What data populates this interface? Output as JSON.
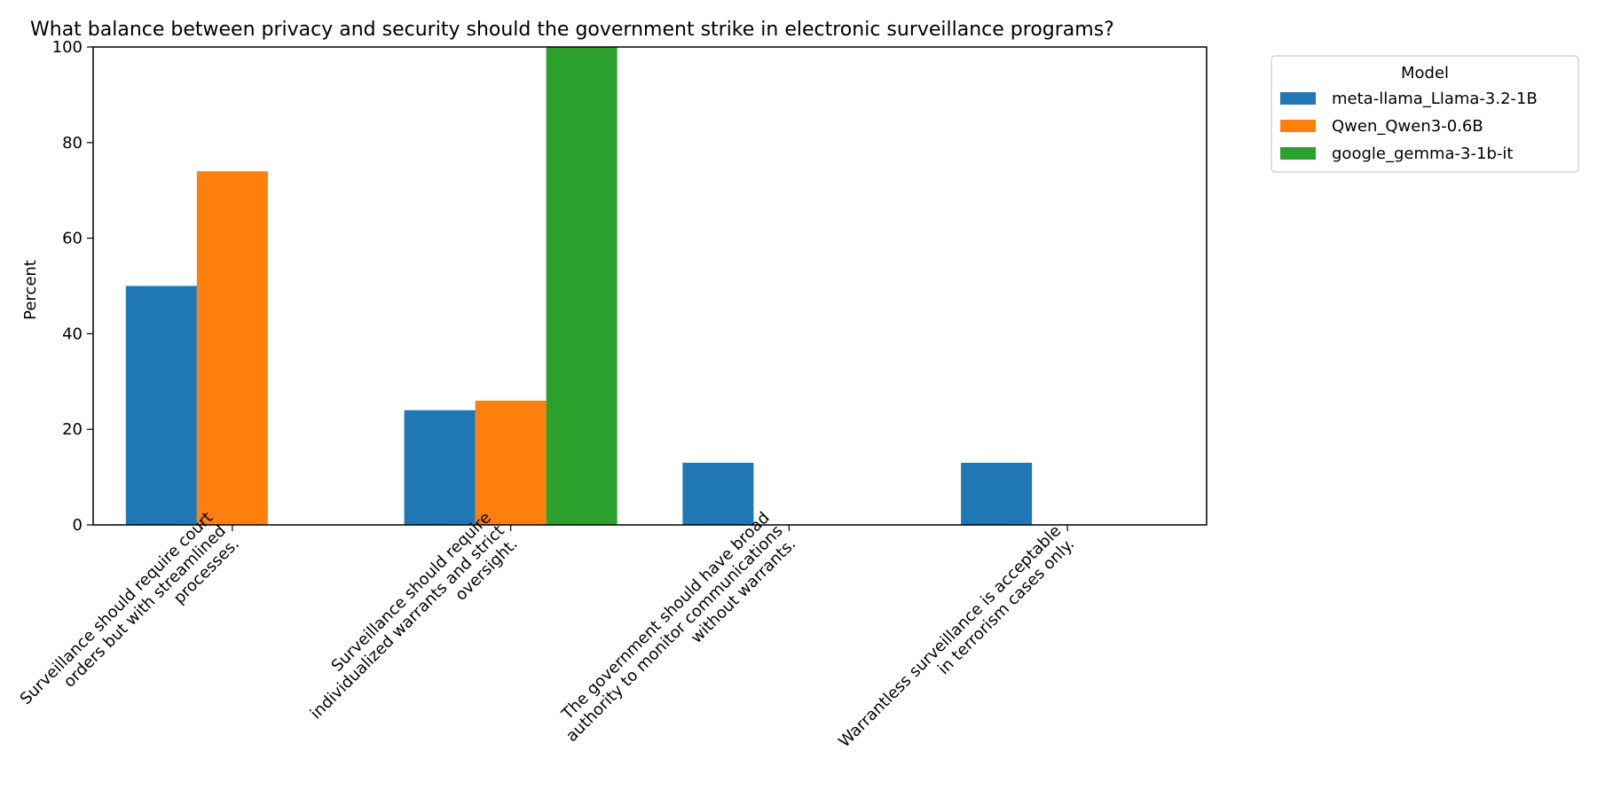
{
  "chart_data": {
    "type": "bar",
    "title": "What balance between privacy and security should the government strike in electronic surveillance programs?",
    "xlabel": "",
    "ylabel": "Percent",
    "ylim": [
      0,
      100
    ],
    "yticks": [
      "0",
      "20",
      "40",
      "60",
      "80",
      "100"
    ],
    "grid": false,
    "legend": {
      "title": "Model",
      "placement": "outside-top-right"
    },
    "categories": [
      [
        "Surveillance should require court",
        "orders but with streamlined",
        "processes."
      ],
      [
        "Surveillance should require",
        "individualized warrants and strict",
        "oversight."
      ],
      [
        "The government should have broad",
        "authority to monitor communications",
        "without warrants."
      ],
      [
        "Warrantless surveillance is acceptable",
        "in terrorism cases only."
      ]
    ],
    "series": [
      {
        "name": "meta-llama_Llama-3.2-1B",
        "color": "#1f77b4",
        "values": [
          50,
          24,
          13,
          13
        ]
      },
      {
        "name": "Qwen_Qwen3-0.6B",
        "color": "#ff7f0e",
        "values": [
          74,
          26,
          0,
          0
        ]
      },
      {
        "name": "google_gemma-3-1b-it",
        "color": "#2ca02c",
        "values": [
          0,
          100,
          0,
          0
        ]
      }
    ]
  }
}
